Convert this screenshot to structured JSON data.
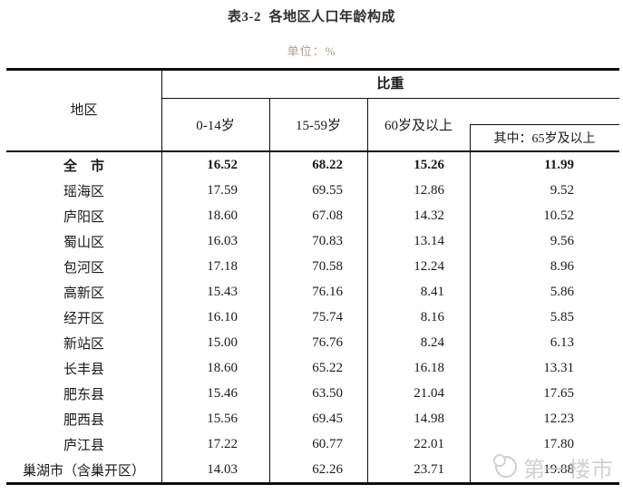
{
  "page": {
    "title": "表3-2  各地区人口年龄构成",
    "unit_label": "单位：%"
  },
  "table": {
    "corner_header": "地区",
    "group_header": "比重",
    "columns": [
      "0-14岁",
      "15-59岁",
      "60岁及以上",
      "其中：65岁及以上"
    ],
    "rows": [
      {
        "region": "全　市",
        "bold": true,
        "values": [
          "16.52",
          "68.22",
          "15.26",
          "11.99"
        ]
      },
      {
        "region": "瑶海区",
        "bold": false,
        "values": [
          "17.59",
          "69.55",
          "12.86",
          "9.52"
        ]
      },
      {
        "region": "庐阳区",
        "bold": false,
        "values": [
          "18.60",
          "67.08",
          "14.32",
          "10.52"
        ]
      },
      {
        "region": "蜀山区",
        "bold": false,
        "values": [
          "16.03",
          "70.83",
          "13.14",
          "9.56"
        ]
      },
      {
        "region": "包河区",
        "bold": false,
        "values": [
          "17.18",
          "70.58",
          "12.24",
          "8.96"
        ]
      },
      {
        "region": "高新区",
        "bold": false,
        "values": [
          "15.43",
          "76.16",
          "8.41",
          "5.86"
        ]
      },
      {
        "region": "经开区",
        "bold": false,
        "values": [
          "16.10",
          "75.74",
          "8.16",
          "5.85"
        ]
      },
      {
        "region": "新站区",
        "bold": false,
        "values": [
          "15.00",
          "76.76",
          "8.24",
          "6.13"
        ]
      },
      {
        "region": "长丰县",
        "bold": false,
        "values": [
          "18.60",
          "65.22",
          "16.18",
          "13.31"
        ]
      },
      {
        "region": "肥东县",
        "bold": false,
        "values": [
          "15.46",
          "63.50",
          "21.04",
          "17.65"
        ]
      },
      {
        "region": "肥西县",
        "bold": false,
        "values": [
          "15.56",
          "69.45",
          "14.98",
          "12.23"
        ]
      },
      {
        "region": "庐江县",
        "bold": false,
        "values": [
          "17.22",
          "60.77",
          "22.01",
          "17.80"
        ]
      },
      {
        "region": "巢湖市（含巢开区）",
        "bold": false,
        "values": [
          "14.03",
          "62.26",
          "23.71",
          "19.88"
        ]
      }
    ]
  },
  "watermark": {
    "text": "第一楼市"
  },
  "colors": {
    "unit_text": "#b49e8d",
    "line": "#0d0d0d",
    "text": "#1a1a1a",
    "watermark": "#c6c6c6"
  }
}
